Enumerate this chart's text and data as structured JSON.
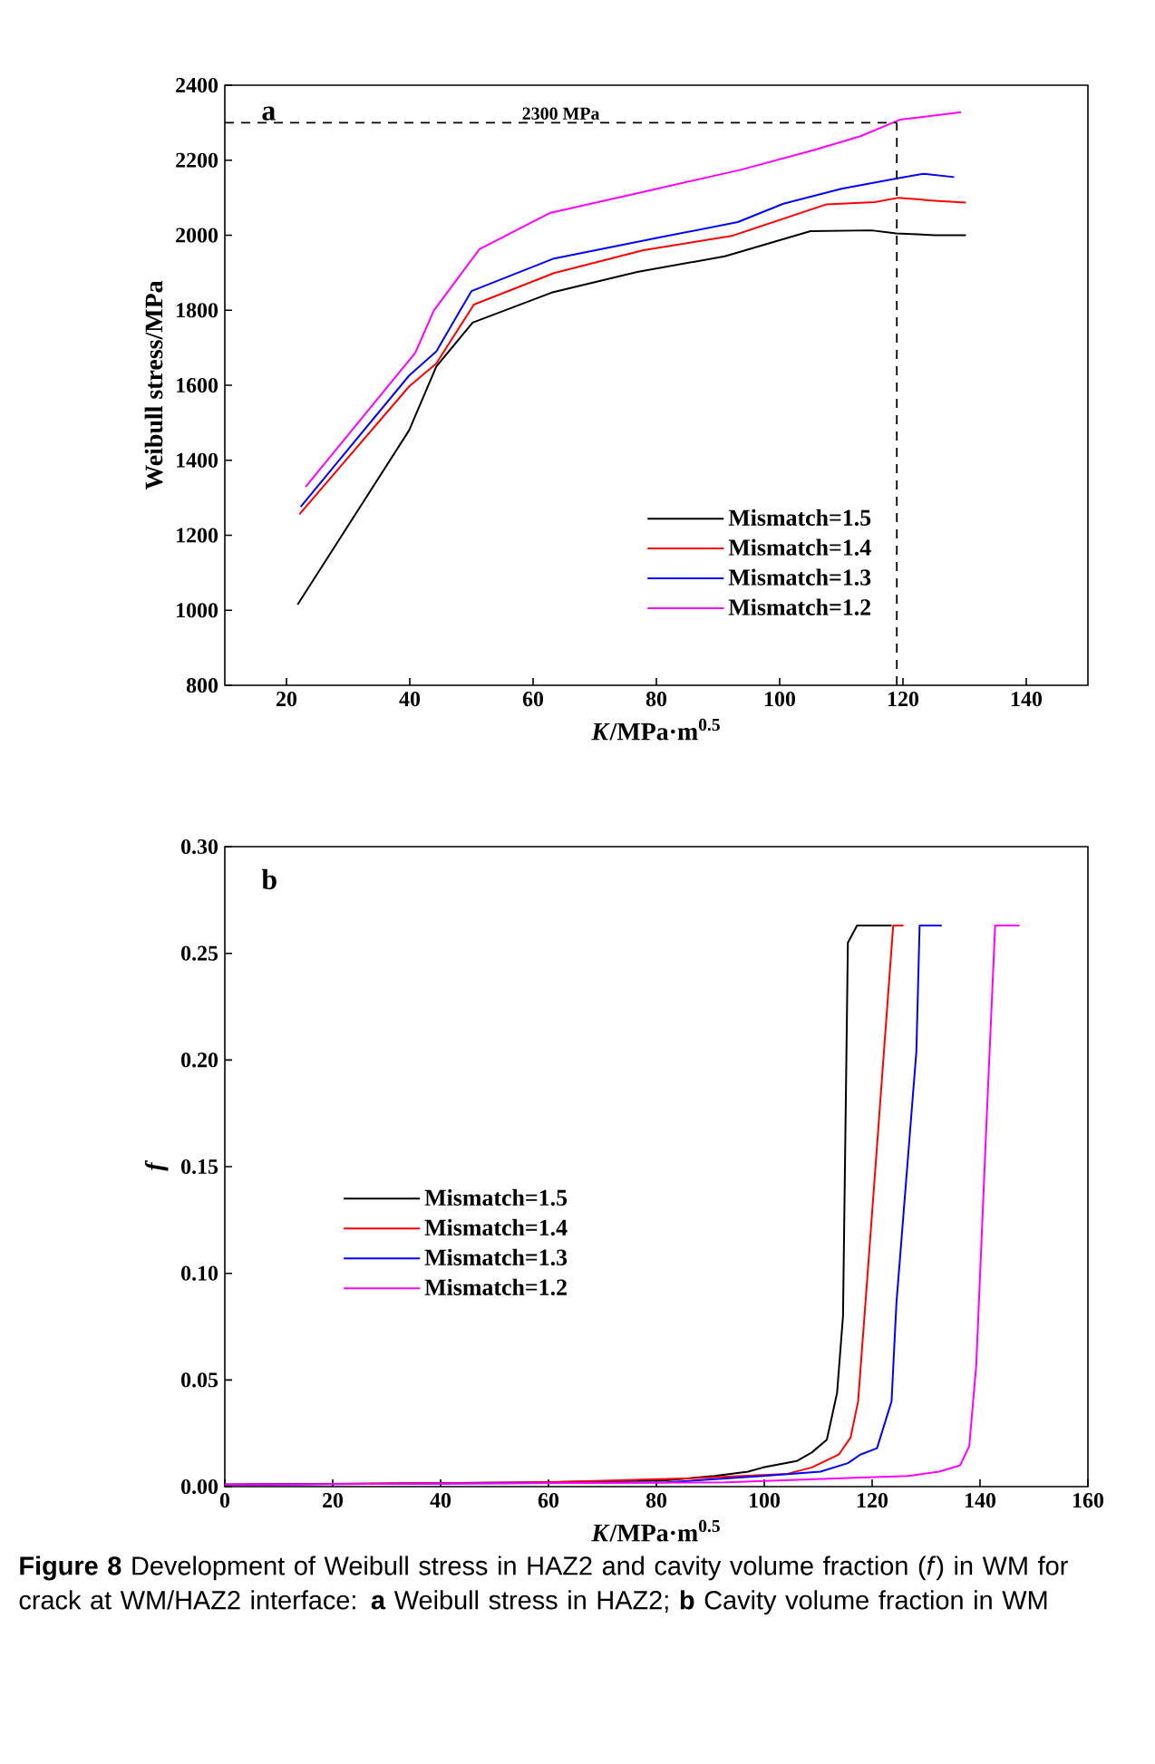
{
  "chart_data": [
    {
      "type": "line",
      "xlabel": "*K*/MPa·m$^{0.5}$",
      "ylabel": "Weibull stress/MPa",
      "xlim": [
        10,
        150
      ],
      "ylim": [
        800,
        2400
      ],
      "xticks": [
        20,
        40,
        60,
        80,
        100,
        120,
        140
      ],
      "yticks": [
        800,
        1000,
        1200,
        1400,
        1600,
        1800,
        2000,
        2200,
        2400
      ],
      "legend": "bottom right",
      "annotations": [
        "a"
      ],
      "ref_lines": [
        {
          "axis": "y",
          "value": 2300,
          "label": "2300 MPa",
          "line_style": "dashed"
        },
        {
          "axis": "x",
          "value": 119,
          "line_style": "dashed"
        }
      ],
      "series": [
        {
          "name": "Mismatch=1.5",
          "color": "#000000",
          "x": [
            21.8,
            39.9,
            44.3,
            50.2,
            63,
            76.9,
            91.1,
            105,
            114.9,
            118.9,
            125.2,
            130.2
          ],
          "values": [
            1015,
            1480,
            1650,
            1767,
            1847,
            1902,
            1944,
            2011,
            2013,
            2005,
            2000,
            2000
          ]
        },
        {
          "name": "Mismatch=1.4",
          "color": "#ff0000",
          "x": [
            22.1,
            39.9,
            44.3,
            50.4,
            63.4,
            77.9,
            92.2,
            107.5,
            115.4,
            119.3,
            125.2,
            130.2
          ],
          "values": [
            1256,
            1597,
            1658,
            1815,
            1899,
            1960,
            1998,
            2082,
            2088,
            2100,
            2092,
            2087
          ]
        },
        {
          "name": "Mismatch=1.3",
          "color": "#0000ff",
          "x": [
            22.3,
            39.9,
            44.3,
            50,
            63.2,
            80.8,
            93.2,
            100.6,
            110,
            118.9,
            123.4,
            128.3
          ],
          "values": [
            1276,
            1626,
            1690,
            1851,
            1937,
            1995,
            2035,
            2084,
            2124,
            2151,
            2164,
            2155
          ]
        },
        {
          "name": "Mismatch=1.2",
          "color": "#ff00ff",
          "x": [
            23.1,
            40.9,
            43.9,
            51.3,
            62.7,
            78,
            93.8,
            105.7,
            113.1,
            119.5,
            129.4
          ],
          "values": [
            1329,
            1687,
            1799,
            1963,
            2059,
            2116,
            2175,
            2228,
            2264,
            2308,
            2328
          ]
        }
      ]
    },
    {
      "type": "line",
      "xlabel": "*K*/MPa·m$^{0.5}$",
      "ylabel": "f",
      "xlim": [
        0,
        160
      ],
      "ylim": [
        0,
        0.3
      ],
      "xticks": [
        0,
        20,
        40,
        60,
        80,
        100,
        120,
        140,
        160
      ],
      "yticks": [
        {
          "value": 0,
          "label": "0.00"
        },
        {
          "value": 0.05,
          "label": "0.05"
        },
        {
          "value": 0.1,
          "label": "0.10"
        },
        {
          "value": 0.15,
          "label": "0.15"
        },
        {
          "value": 0.2,
          "label": "0.20"
        },
        {
          "value": 0.25,
          "label": "0.25"
        },
        {
          "value": 0.3,
          "label": "0.30"
        }
      ],
      "legend": "center left",
      "annotations": [
        "b",
        "**Figure 8**  Development of Weibull stress in HAZ2 and cavity volume fraction (*f*) in WM for crack at WM/HAZ2 interface: **a** Weibull stress in HAZ2; **b** Cavity volume fraction in WM"
      ],
      "series": [
        {
          "name": "Mismatch=1.5",
          "color": "#000000",
          "x": [
            0,
            59.3,
            81.8,
            90.8,
            97,
            99.8,
            106,
            108.8,
            111.6,
            113.5,
            114.6,
            115.5,
            117.2,
            123.6
          ],
          "values": [
            0.001,
            0.002,
            0.003,
            0.005,
            0.007,
            0.009,
            0.012,
            0.016,
            0.022,
            0.044,
            0.08,
            0.255,
            0.263,
            0.263
          ]
        },
        {
          "name": "Mismatch=1.4",
          "color": "#ff0000",
          "x": [
            0,
            59.3,
            87.4,
            104.3,
            108.8,
            113.8,
            116,
            117.4,
            119.4,
            123.9,
            125.8
          ],
          "values": [
            0.001,
            0.002,
            0.004,
            0.006,
            0.009,
            0.015,
            0.023,
            0.04,
            0.108,
            0.263,
            0.263
          ]
        },
        {
          "name": "Mismatch=1.3",
          "color": "#0000ff",
          "x": [
            0,
            81.8,
            99.8,
            110.4,
            115.5,
            117.8,
            120.9,
            123.6,
            124.5,
            128.2,
            128.8,
            132.9
          ],
          "values": [
            0.001,
            0.002,
            0.005,
            0.007,
            0.011,
            0.015,
            0.018,
            0.04,
            0.086,
            0.204,
            0.263,
            0.263
          ]
        },
        {
          "name": "Mismatch=1.2",
          "color": "#ff00ff",
          "x": [
            0,
            93,
            115.5,
            126.7,
            132.4,
            136.3,
            138,
            139.3,
            141.1,
            142.8,
            147.3
          ],
          "values": [
            0.001,
            0.002,
            0.004,
            0.005,
            0.007,
            0.01,
            0.019,
            0.057,
            0.165,
            0.263,
            0.263
          ]
        }
      ]
    }
  ]
}
